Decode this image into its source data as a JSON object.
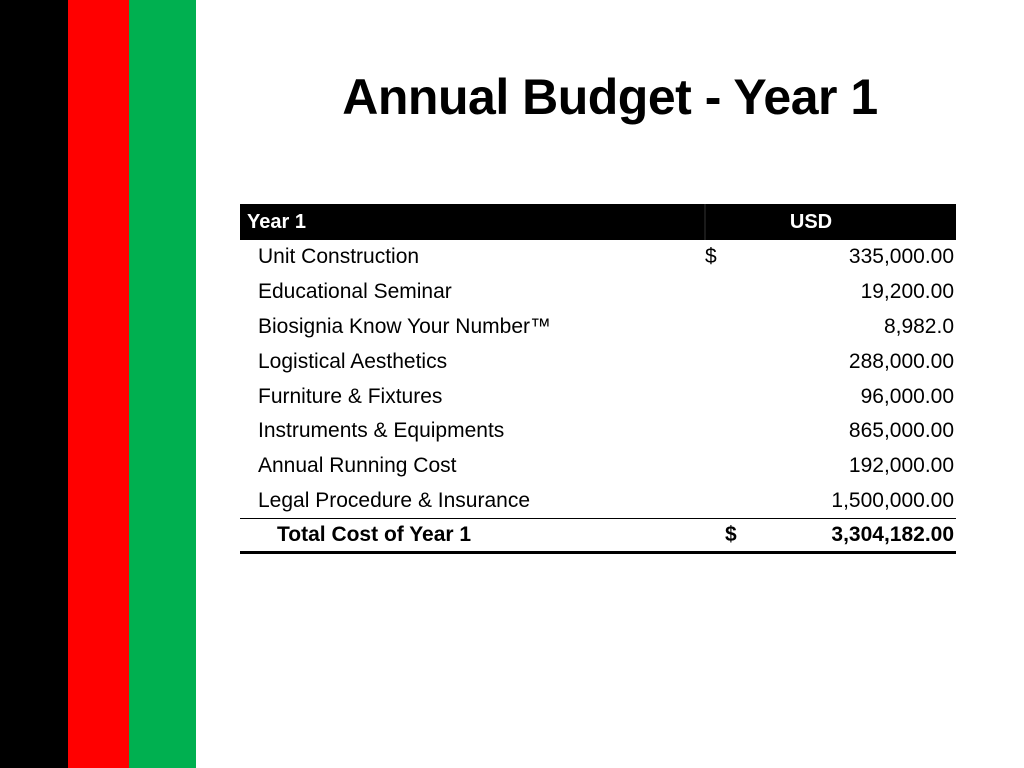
{
  "slide": {
    "title": "Annual Budget - Year 1",
    "stripe_colors": [
      "#000000",
      "#ff0000",
      "#00b050"
    ]
  },
  "table": {
    "headers": {
      "label": "Year 1",
      "currency": "USD"
    },
    "rows": [
      {
        "label": "Unit Construction",
        "currency": "$",
        "amount": "335,000.00"
      },
      {
        "label": "Educational Seminar",
        "currency": "",
        "amount": "19,200.00"
      },
      {
        "label": "Biosignia Know Your Number™",
        "currency": "",
        "amount": "8,982.0"
      },
      {
        "label": "Logistical Aesthetics",
        "currency": "",
        "amount": "288,000.00"
      },
      {
        "label": "Furniture & Fixtures",
        "currency": "",
        "amount": "96,000.00"
      },
      {
        "label": "Instruments & Equipments",
        "currency": "",
        "amount": "865,000.00"
      },
      {
        "label": "Annual Running Cost",
        "currency": "",
        "amount": "192,000.00"
      },
      {
        "label": "Legal Procedure & Insurance",
        "currency": "",
        "amount": "1,500,000.00"
      }
    ],
    "total": {
      "label": "Total Cost of Year 1",
      "currency": "$",
      "amount": "3,304,182.00"
    }
  }
}
